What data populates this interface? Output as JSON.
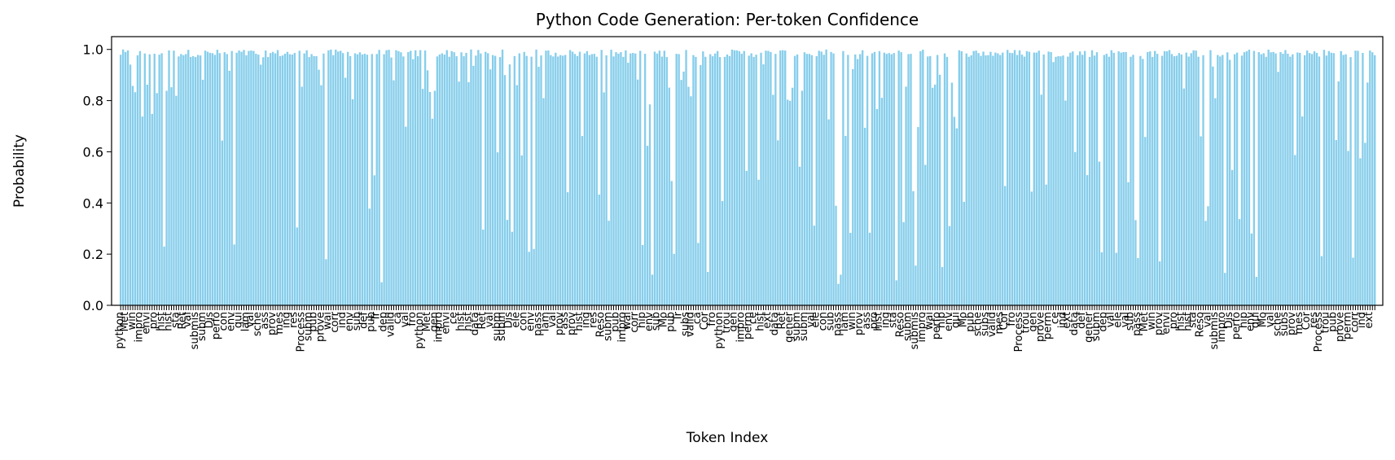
{
  "chart_data": {
    "type": "bar",
    "title": "Python Code Generation: Per-token Confidence",
    "xlabel": "Token Index",
    "ylabel": "Probability",
    "ylim": [
      0,
      1.05
    ],
    "yticks": [
      0.0,
      0.2,
      0.4,
      0.6,
      0.8,
      1.0
    ],
    "ytick_labels": [
      "0.0",
      "0.2",
      "0.4",
      "0.6",
      "0.8",
      "1.0"
    ],
    "grid": false,
    "bar_color": "#87ceeb",
    "axis_color": "#000000",
    "token_count": 520,
    "token_labels_sample": [
      "python",
      "Process",
      "Reso",
      "Ret",
      "def",
      "Mo",
      "lam",
      "Met",
      "trou",
      "subm",
      "val",
      "gener",
      "pub",
      "val",
      "win",
      "gen",
      "pub",
      "submis",
      "subm",
      "Tr",
      "sche",
      "prov",
      "impro",
      "prove",
      "impro",
      "subm",
      "dep",
      "subs",
      "ass",
      "envi",
      "perm",
      "wai",
      "Dis",
      "val",
      "valid",
      "prov",
      "pro",
      "ce",
      "corr",
      "perfo",
      "ele",
      "ca",
      "mes",
      "hist",
      "hist",
      "ind",
      "hip",
      "con",
      "val",
      "Cor",
      "ing",
      "hist",
      "ext",
      "env",
      "env",
      "sub",
      "fro",
      "res",
      "sta",
      "data",
      "sub",
      "qui",
      "pass"
    ],
    "values_note": "",
    "values": []
  }
}
